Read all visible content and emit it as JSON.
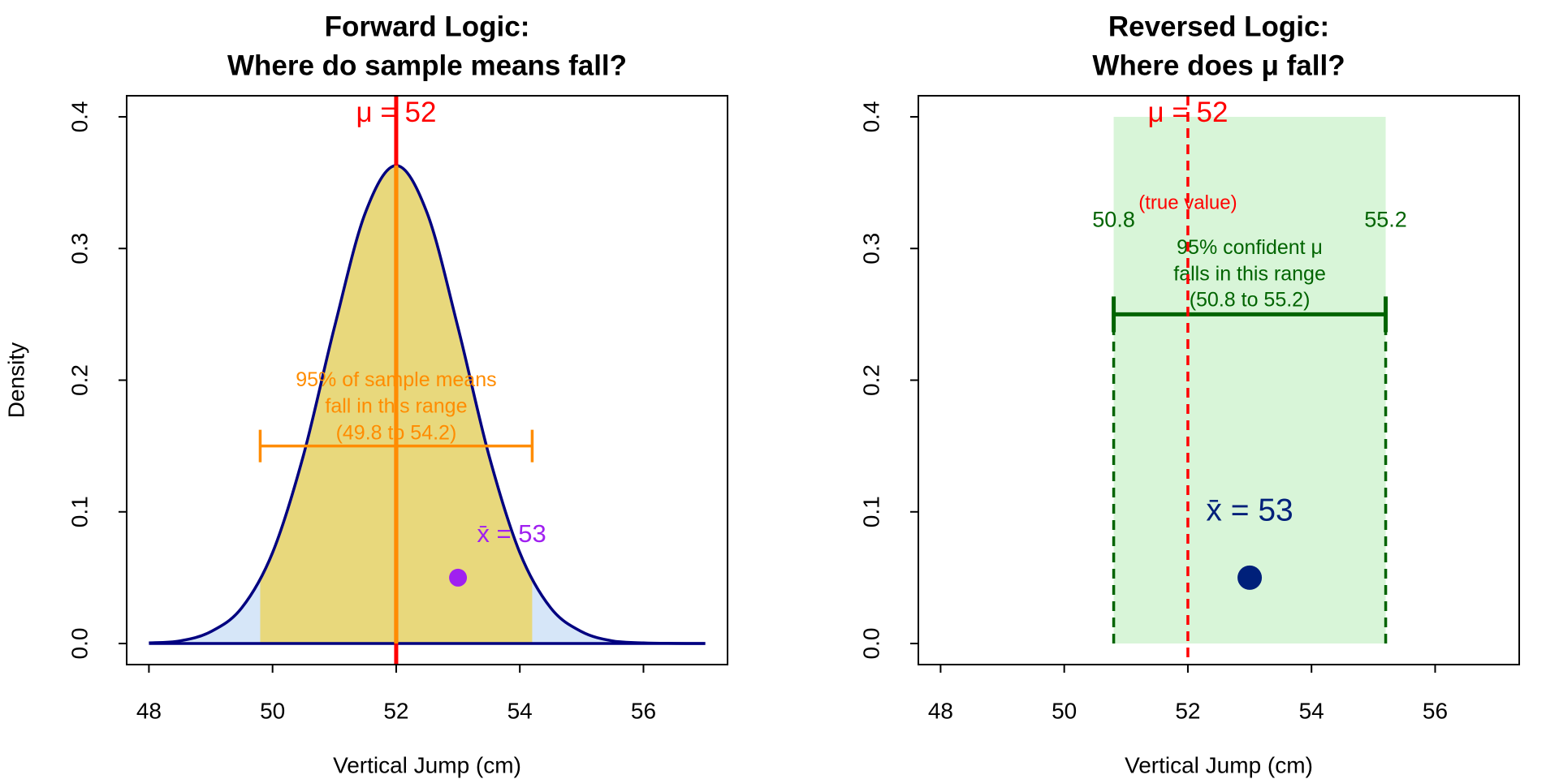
{
  "chart_data": [
    {
      "type": "density",
      "title": [
        "Forward Logic:",
        "Where do sample means fall?"
      ],
      "xlabel": "Vertical Jump (cm)",
      "ylabel": "Density",
      "xlim": [
        47.64,
        57.36
      ],
      "ylim": [
        -0.016,
        0.416
      ],
      "xticks": [
        48,
        50,
        52,
        54,
        56
      ],
      "yticks": [
        {
          "value": 0,
          "label": "0.0"
        },
        0.1,
        0.2,
        0.3,
        0.4
      ],
      "curve": {
        "x": [
          48,
          48.5,
          49,
          49.5,
          50,
          50.5,
          51,
          51.5,
          52,
          52.5,
          53,
          53.5,
          54,
          54.5,
          55,
          55.5,
          56,
          56.5,
          57
        ],
        "values": [
          0.0005,
          0.002,
          0.009,
          0.027,
          0.069,
          0.143,
          0.24,
          0.327,
          0.363,
          0.327,
          0.24,
          0.143,
          0.069,
          0.027,
          0.009,
          0.002,
          0.0005,
          0.0001,
          0
        ],
        "color": "#000080",
        "fill": "#d6e6f8"
      },
      "shade": {
        "range": [
          49.8,
          54.2
        ],
        "color": "#e8d87c"
      },
      "mu": {
        "value": 52,
        "label": "μ = 52",
        "color": "#ff0000"
      },
      "peak": {
        "value": 0.363,
        "color": "#ff8c00"
      },
      "interval": {
        "range": [
          49.8,
          54.2
        ],
        "y": 0.15,
        "color": "#ff8c00",
        "text": [
          "95% of sample means",
          "fall in this range",
          "(49.8 to 54.2)"
        ]
      },
      "point": {
        "x": 53,
        "y": 0.05,
        "color": "#a020f0",
        "label": "x̄ = 53"
      }
    },
    {
      "type": "ci",
      "title": [
        "Reversed Logic:",
        "Where does μ fall?"
      ],
      "xlabel": "Vertical Jump (cm)",
      "xlim": [
        47.64,
        57.36
      ],
      "ylim": [
        -0.016,
        0.416
      ],
      "xticks": [
        48,
        50,
        52,
        54,
        56
      ],
      "yticks": [
        {
          "value": 0,
          "label": "0.0"
        },
        0.1,
        0.2,
        0.3,
        0.4
      ],
      "band": {
        "range": [
          50.8,
          55.2
        ],
        "top": 0.4,
        "color": "#d8f5d8"
      },
      "interval": {
        "range": [
          50.8,
          55.2
        ],
        "y": 0.25,
        "color": "#006400",
        "text": [
          "95% confident μ",
          "falls in this range",
          "(50.8 to 55.2)"
        ]
      },
      "mu": {
        "value": 52,
        "label": "μ = 52",
        "note": "(true value)",
        "color": "#ff0000"
      },
      "point": {
        "x": 53,
        "y": 0.05,
        "color": "#00207a",
        "label": "x̄ = 53"
      }
    }
  ]
}
